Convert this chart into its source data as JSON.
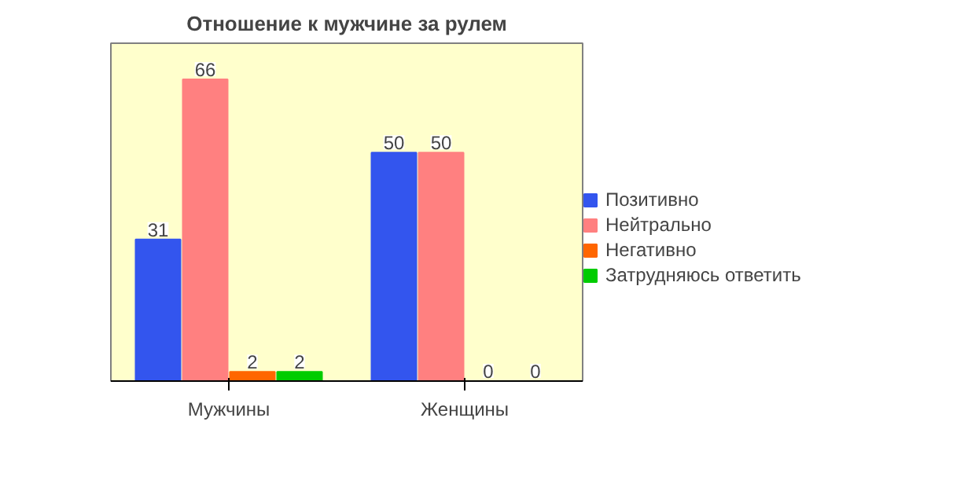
{
  "chart_data": {
    "type": "bar",
    "title": "Отношение к мужчине за рулем",
    "categories": [
      "Мужчины",
      "Женщины"
    ],
    "series": [
      {
        "name": "Позитивно",
        "color": "#3355ee",
        "values": [
          31,
          50
        ]
      },
      {
        "name": "Нейтрально",
        "color": "#ff8080",
        "values": [
          66,
          50
        ]
      },
      {
        "name": "Негативно",
        "color": "#ff6600",
        "values": [
          2,
          0
        ]
      },
      {
        "name": "Затрудняюсь ответить",
        "color": "#00cc00",
        "values": [
          2,
          0
        ]
      }
    ],
    "data_labels": true,
    "legend": "right",
    "grid": false
  }
}
